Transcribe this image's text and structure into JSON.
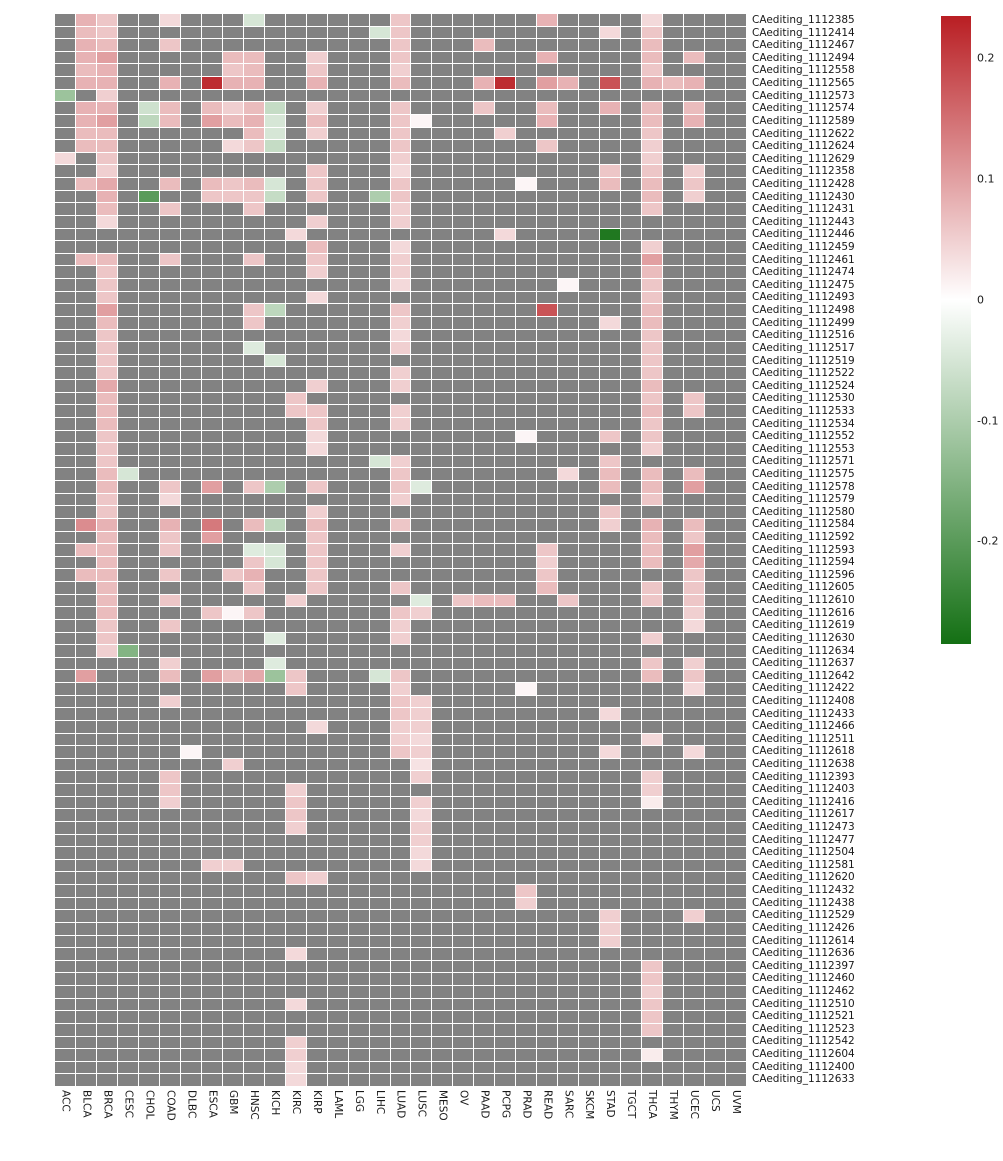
{
  "chart_data": {
    "type": "heatmap",
    "title": "",
    "na_color": "#828282",
    "legend": {
      "top_value": 0.235,
      "bottom_value": -0.285,
      "ticks": [
        {
          "label": "0.2",
          "value": 0.2
        },
        {
          "label": "0.1",
          "value": 0.1
        },
        {
          "label": "0",
          "value": 0
        },
        {
          "label": "-0.1",
          "value": -0.1
        },
        {
          "label": "-0.2",
          "value": -0.2
        }
      ],
      "colors": {
        "positive": "#b91e23",
        "zero": "#ffffff",
        "negative": "#147014",
        "na": "#828282"
      }
    },
    "columns": [
      "ACC",
      "BLCA",
      "BRCA",
      "CESC",
      "CHOL",
      "COAD",
      "DLBC",
      "ESCA",
      "GBM",
      "HNSC",
      "KICH",
      "KIRC",
      "KIRP",
      "LAML",
      "LGG",
      "LIHC",
      "LUAD",
      "LUSC",
      "MESO",
      "OV",
      "PAAD",
      "PCPG",
      "PRAD",
      "READ",
      "SARC",
      "SKCM",
      "STAD",
      "TGCT",
      "THCA",
      "THYM",
      "UCEC",
      "UCS",
      "UVM"
    ],
    "rows": [
      {
        "label": "CAediting_1112385",
        "cells": {
          "BLCA": 0.08,
          "BRCA": 0.06,
          "COAD": 0.04,
          "HNSC": -0.05,
          "LUAD": 0.06,
          "READ": 0.08,
          "THCA": 0.04
        }
      },
      {
        "label": "CAediting_1112414",
        "cells": {
          "BLCA": 0.07,
          "BRCA": 0.06,
          "LIHC": -0.05,
          "LUAD": 0.06,
          "STAD": 0.04,
          "THCA": 0.06
        }
      },
      {
        "label": "CAediting_1112467",
        "cells": {
          "BLCA": 0.08,
          "BRCA": 0.07,
          "COAD": 0.06,
          "LUAD": 0.06,
          "PAAD": 0.07,
          "THCA": 0.07
        }
      },
      {
        "label": "CAediting_1112494",
        "cells": {
          "BLCA": 0.08,
          "BRCA": 0.1,
          "GBM": 0.07,
          "HNSC": 0.07,
          "KIRP": 0.05,
          "LUAD": 0.06,
          "READ": 0.08,
          "THCA": 0.07,
          "UCEC": 0.07
        }
      },
      {
        "label": "CAediting_1112558",
        "cells": {
          "BLCA": 0.07,
          "BRCA": 0.08,
          "GBM": 0.06,
          "HNSC": 0.07,
          "KIRP": 0.06,
          "LUAD": 0.05,
          "THCA": 0.06
        }
      },
      {
        "label": "CAediting_1112565",
        "cells": {
          "BLCA": 0.08,
          "BRCA": 0.08,
          "COAD": 0.08,
          "ESCA": 0.22,
          "GBM": 0.08,
          "HNSC": 0.08,
          "KIRP": 0.08,
          "LUAD": 0.07,
          "PAAD": 0.08,
          "PCPG": 0.22,
          "READ": 0.1,
          "SARC": 0.08,
          "STAD": 0.18,
          "THCA": 0.08,
          "THYM": 0.07,
          "UCEC": 0.08
        }
      },
      {
        "label": "CAediting_1112573",
        "cells": {
          "ACC": -0.12,
          "BRCA": 0.05
        }
      },
      {
        "label": "CAediting_1112574",
        "cells": {
          "BLCA": 0.08,
          "BRCA": 0.08,
          "CHOL": -0.06,
          "COAD": 0.07,
          "ESCA": 0.07,
          "GBM": 0.05,
          "HNSC": 0.07,
          "KICH": -0.07,
          "KIRP": 0.05,
          "LUAD": 0.06,
          "PAAD": 0.06,
          "READ": 0.07,
          "STAD": 0.08,
          "THCA": 0.07,
          "UCEC": 0.07
        }
      },
      {
        "label": "CAediting_1112589",
        "cells": {
          "BLCA": 0.08,
          "BRCA": 0.1,
          "CHOL": -0.08,
          "COAD": 0.07,
          "ESCA": 0.1,
          "GBM": 0.07,
          "HNSC": 0.08,
          "KICH": -0.05,
          "KIRP": 0.07,
          "LUAD": 0.06,
          "LUSC": 0.01,
          "READ": 0.08,
          "THCA": 0.07,
          "UCEC": 0.08
        }
      },
      {
        "label": "CAediting_1112622",
        "cells": {
          "BLCA": 0.07,
          "BRCA": 0.07,
          "HNSC": 0.07,
          "KICH": -0.05,
          "KIRP": 0.05,
          "LUAD": 0.06,
          "PCPG": 0.05,
          "THCA": 0.06
        }
      },
      {
        "label": "CAediting_1112624",
        "cells": {
          "BLCA": 0.07,
          "BRCA": 0.07,
          "GBM": 0.04,
          "HNSC": 0.06,
          "KICH": -0.07,
          "LUAD": 0.06,
          "READ": 0.06,
          "THCA": 0.05
        }
      },
      {
        "label": "CAediting_1112629",
        "cells": {
          "ACC": 0.04,
          "BRCA": 0.06,
          "LUAD": 0.05,
          "THCA": 0.05
        }
      },
      {
        "label": "CAediting_1112358",
        "cells": {
          "BRCA": 0.05,
          "KIRP": 0.06,
          "LUAD": 0.04,
          "STAD": 0.06,
          "THCA": 0.06,
          "UCEC": 0.05
        }
      },
      {
        "label": "CAediting_1112428",
        "cells": {
          "BLCA": 0.07,
          "BRCA": 0.09,
          "COAD": 0.07,
          "ESCA": 0.07,
          "GBM": 0.06,
          "HNSC": 0.07,
          "KICH": -0.05,
          "KIRP": 0.06,
          "LUAD": 0.06,
          "PRAD": 0.01,
          "STAD": 0.07,
          "THCA": 0.07,
          "UCEC": 0.06
        }
      },
      {
        "label": "CAediting_1112430",
        "cells": {
          "BRCA": 0.08,
          "CHOL": -0.2,
          "ESCA": 0.06,
          "GBM": 0.06,
          "HNSC": 0.06,
          "KICH": -0.07,
          "KIRP": 0.06,
          "LIHC": -0.1,
          "LUAD": 0.06,
          "THCA": 0.07,
          "UCEC": 0.05
        }
      },
      {
        "label": "CAediting_1112431",
        "cells": {
          "BRCA": 0.07,
          "COAD": 0.06,
          "HNSC": 0.06,
          "LUAD": 0.05,
          "THCA": 0.06
        }
      },
      {
        "label": "CAediting_1112443",
        "cells": {
          "BRCA": 0.04,
          "KIRP": 0.05,
          "LUAD": 0.05
        }
      },
      {
        "label": "CAediting_1112446",
        "cells": {
          "KIRC": 0.04,
          "PCPG": 0.04,
          "STAD": -0.27
        }
      },
      {
        "label": "CAediting_1112459",
        "cells": {
          "KIRP": 0.07,
          "LUAD": 0.04,
          "THCA": 0.05
        }
      },
      {
        "label": "CAediting_1112461",
        "cells": {
          "BLCA": 0.07,
          "BRCA": 0.07,
          "COAD": 0.06,
          "HNSC": 0.06,
          "KIRP": 0.06,
          "LUAD": 0.05,
          "THCA": 0.1
        }
      },
      {
        "label": "CAediting_1112474",
        "cells": {
          "BRCA": 0.06,
          "KIRP": 0.05,
          "LUAD": 0.05,
          "THCA": 0.07
        }
      },
      {
        "label": "CAediting_1112475",
        "cells": {
          "BRCA": 0.06,
          "LUAD": 0.04,
          "SARC": 0.01,
          "THCA": 0.06
        }
      },
      {
        "label": "CAediting_1112493",
        "cells": {
          "BRCA": 0.06,
          "KIRP": 0.04,
          "THCA": 0.06
        }
      },
      {
        "label": "CAediting_1112498",
        "cells": {
          "BRCA": 0.1,
          "HNSC": 0.06,
          "KICH": -0.08,
          "LUAD": 0.06,
          "READ": 0.18,
          "THCA": 0.07
        }
      },
      {
        "label": "CAediting_1112499",
        "cells": {
          "BRCA": 0.07,
          "HNSC": 0.06,
          "LUAD": 0.05,
          "STAD": 0.04,
          "THCA": 0.07
        }
      },
      {
        "label": "CAediting_1112516",
        "cells": {
          "BRCA": 0.06,
          "LUAD": 0.04,
          "THCA": 0.06
        }
      },
      {
        "label": "CAediting_1112517",
        "cells": {
          "BRCA": 0.06,
          "HNSC": -0.04,
          "LUAD": 0.05,
          "THCA": 0.06
        }
      },
      {
        "label": "CAediting_1112519",
        "cells": {
          "BRCA": 0.06,
          "KICH": -0.05,
          "THCA": 0.06
        }
      },
      {
        "label": "CAediting_1112522",
        "cells": {
          "BRCA": 0.06,
          "LUAD": 0.05,
          "THCA": 0.06
        }
      },
      {
        "label": "CAediting_1112524",
        "cells": {
          "BRCA": 0.09,
          "KIRP": 0.05,
          "LUAD": 0.05,
          "THCA": 0.07
        }
      },
      {
        "label": "CAediting_1112530",
        "cells": {
          "BRCA": 0.07,
          "KIRC": 0.06,
          "THCA": 0.06,
          "UCEC": 0.06
        }
      },
      {
        "label": "CAediting_1112533",
        "cells": {
          "BRCA": 0.07,
          "KIRC": 0.06,
          "KIRP": 0.06,
          "LUAD": 0.05,
          "THCA": 0.07,
          "UCEC": 0.06
        }
      },
      {
        "label": "CAediting_1112534",
        "cells": {
          "BRCA": 0.07,
          "KIRP": 0.06,
          "LUAD": 0.05,
          "THCA": 0.06
        }
      },
      {
        "label": "CAediting_1112552",
        "cells": {
          "BRCA": 0.06,
          "KIRP": 0.04,
          "PRAD": 0.01,
          "STAD": 0.06,
          "THCA": 0.06
        }
      },
      {
        "label": "CAediting_1112553",
        "cells": {
          "BRCA": 0.06,
          "KIRP": 0.04,
          "THCA": 0.05
        }
      },
      {
        "label": "CAediting_1112571",
        "cells": {
          "BRCA": 0.06,
          "LIHC": -0.05,
          "LUAD": 0.05,
          "STAD": 0.06
        }
      },
      {
        "label": "CAediting_1112575",
        "cells": {
          "BRCA": 0.07,
          "CESC": -0.05,
          "LUAD": 0.06,
          "SARC": 0.04,
          "STAD": 0.07,
          "THCA": 0.07,
          "UCEC": 0.07
        }
      },
      {
        "label": "CAediting_1112578",
        "cells": {
          "BRCA": 0.07,
          "COAD": 0.06,
          "ESCA": 0.1,
          "HNSC": 0.06,
          "KICH": -0.1,
          "KIRP": 0.06,
          "LUAD": 0.06,
          "LUSC": -0.04,
          "STAD": 0.07,
          "THCA": 0.07,
          "UCEC": 0.1
        }
      },
      {
        "label": "CAediting_1112579",
        "cells": {
          "BRCA": 0.06,
          "COAD": 0.04,
          "LUAD": 0.05,
          "THCA": 0.06
        }
      },
      {
        "label": "CAediting_1112580",
        "cells": {
          "BRCA": 0.06,
          "KIRP": 0.05,
          "STAD": 0.06
        }
      },
      {
        "label": "CAediting_1112584",
        "cells": {
          "BLCA": 0.12,
          "BRCA": 0.08,
          "COAD": 0.08,
          "ESCA": 0.14,
          "HNSC": 0.07,
          "KICH": -0.08,
          "KIRP": 0.07,
          "LUAD": 0.06,
          "STAD": 0.05,
          "THCA": 0.08,
          "UCEC": 0.07
        }
      },
      {
        "label": "CAediting_1112592",
        "cells": {
          "BRCA": 0.07,
          "COAD": 0.06,
          "ESCA": 0.1,
          "KIRP": 0.06,
          "THCA": 0.07,
          "UCEC": 0.06
        }
      },
      {
        "label": "CAediting_1112593",
        "cells": {
          "BLCA": 0.07,
          "BRCA": 0.07,
          "COAD": 0.06,
          "HNSC": -0.04,
          "KICH": -0.05,
          "KIRP": 0.06,
          "LUAD": 0.05,
          "READ": 0.06,
          "THCA": 0.07,
          "UCEC": 0.1
        }
      },
      {
        "label": "CAediting_1112594",
        "cells": {
          "BRCA": 0.07,
          "HNSC": 0.06,
          "KICH": -0.05,
          "KIRP": 0.06,
          "READ": 0.05,
          "THCA": 0.07,
          "UCEC": 0.09
        }
      },
      {
        "label": "CAediting_1112596",
        "cells": {
          "BLCA": 0.07,
          "BRCA": 0.07,
          "COAD": 0.06,
          "GBM": 0.06,
          "HNSC": 0.08,
          "KIRP": 0.06,
          "READ": 0.06,
          "UCEC": 0.06
        }
      },
      {
        "label": "CAediting_1112605",
        "cells": {
          "BRCA": 0.07,
          "HNSC": 0.06,
          "KIRP": 0.06,
          "LUAD": 0.06,
          "READ": 0.07,
          "THCA": 0.06,
          "UCEC": 0.06
        }
      },
      {
        "label": "CAediting_1112610",
        "cells": {
          "BRCA": 0.07,
          "COAD": 0.06,
          "KIRC": 0.05,
          "LUSC": -0.04,
          "OV": 0.06,
          "PAAD": 0.07,
          "PCPG": 0.07,
          "SARC": 0.06,
          "THCA": 0.06,
          "UCEC": 0.06
        }
      },
      {
        "label": "CAediting_1112616",
        "cells": {
          "BRCA": 0.07,
          "ESCA": 0.06,
          "GBM": 0.01,
          "HNSC": 0.06,
          "LUAD": 0.06,
          "LUSC": 0.05,
          "UCEC": 0.05
        }
      },
      {
        "label": "CAediting_1112619",
        "cells": {
          "BRCA": 0.06,
          "COAD": 0.06,
          "LUAD": 0.05,
          "UCEC": 0.04
        }
      },
      {
        "label": "CAediting_1112630",
        "cells": {
          "BRCA": 0.06,
          "KICH": -0.04,
          "LUAD": 0.05,
          "THCA": 0.05
        }
      },
      {
        "label": "CAediting_1112634",
        "cells": {
          "BRCA": 0.05,
          "CESC": -0.15
        }
      },
      {
        "label": "CAediting_1112637",
        "cells": {
          "COAD": 0.05,
          "KICH": -0.04,
          "THCA": 0.06,
          "UCEC": 0.05
        }
      },
      {
        "label": "CAediting_1112642",
        "cells": {
          "BLCA": 0.1,
          "COAD": 0.07,
          "ESCA": 0.1,
          "GBM": 0.07,
          "HNSC": 0.09,
          "KICH": -0.12,
          "KIRC": 0.06,
          "LIHC": -0.05,
          "LUAD": 0.06,
          "THCA": 0.07,
          "UCEC": 0.06
        }
      },
      {
        "label": "CAediting_1112422",
        "cells": {
          "KIRC": 0.06,
          "LUAD": 0.05,
          "PRAD": 0.01,
          "UCEC": 0.04
        }
      },
      {
        "label": "CAediting_1112408",
        "cells": {
          "COAD": 0.05,
          "LUAD": 0.06,
          "LUSC": 0.05
        }
      },
      {
        "label": "CAediting_1112433",
        "cells": {
          "LUAD": 0.06,
          "LUSC": 0.05,
          "STAD": 0.04
        }
      },
      {
        "label": "CAediting_1112466",
        "cells": {
          "KIRP": 0.04,
          "LUAD": 0.05,
          "LUSC": 0.05
        }
      },
      {
        "label": "CAediting_1112511",
        "cells": {
          "LUAD": 0.05,
          "LUSC": 0.04,
          "THCA": 0.04
        }
      },
      {
        "label": "CAediting_1112618",
        "cells": {
          "DLBC": 0.01,
          "LUAD": 0.06,
          "LUSC": 0.05,
          "STAD": 0.04,
          "UCEC": 0.04
        }
      },
      {
        "label": "CAediting_1112638",
        "cells": {
          "GBM": 0.05,
          "LUSC": 0.03
        }
      },
      {
        "label": "CAediting_1112393",
        "cells": {
          "COAD": 0.06,
          "LUSC": 0.05,
          "THCA": 0.05
        }
      },
      {
        "label": "CAediting_1112403",
        "cells": {
          "COAD": 0.06,
          "KIRC": 0.05,
          "THCA": 0.05
        }
      },
      {
        "label": "CAediting_1112416",
        "cells": {
          "COAD": 0.05,
          "KIRC": 0.06,
          "LUSC": 0.05,
          "THCA": 0.02
        }
      },
      {
        "label": "CAediting_1112617",
        "cells": {
          "KIRC": 0.06,
          "LUSC": 0.04
        }
      },
      {
        "label": "CAediting_1112473",
        "cells": {
          "KIRC": 0.05,
          "LUSC": 0.05
        }
      },
      {
        "label": "CAediting_1112477",
        "cells": {
          "LUSC": 0.05
        }
      },
      {
        "label": "CAediting_1112504",
        "cells": {
          "LUSC": 0.04
        }
      },
      {
        "label": "CAediting_1112581",
        "cells": {
          "ESCA": 0.05,
          "GBM": 0.05,
          "LUSC": 0.04
        }
      },
      {
        "label": "CAediting_1112620",
        "cells": {
          "KIRC": 0.06,
          "KIRP": 0.05
        }
      },
      {
        "label": "CAediting_1112432",
        "cells": {
          "PRAD": 0.06
        }
      },
      {
        "label": "CAediting_1112438",
        "cells": {
          "PRAD": 0.05
        }
      },
      {
        "label": "CAediting_1112529",
        "cells": {
          "STAD": 0.05,
          "UCEC": 0.05
        }
      },
      {
        "label": "CAediting_1112426",
        "cells": {
          "STAD": 0.05
        }
      },
      {
        "label": "CAediting_1112614",
        "cells": {
          "STAD": 0.05
        }
      },
      {
        "label": "CAediting_1112636",
        "cells": {
          "KIRC": 0.04
        }
      },
      {
        "label": "CAediting_1112397",
        "cells": {
          "THCA": 0.06
        }
      },
      {
        "label": "CAediting_1112460",
        "cells": {
          "THCA": 0.06
        }
      },
      {
        "label": "CAediting_1112462",
        "cells": {
          "THCA": 0.05
        }
      },
      {
        "label": "CAediting_1112510",
        "cells": {
          "KIRC": 0.04,
          "THCA": 0.06
        }
      },
      {
        "label": "CAediting_1112521",
        "cells": {
          "THCA": 0.06
        }
      },
      {
        "label": "CAediting_1112523",
        "cells": {
          "THCA": 0.06
        }
      },
      {
        "label": "CAediting_1112542",
        "cells": {
          "KIRC": 0.05
        }
      },
      {
        "label": "CAediting_1112604",
        "cells": {
          "KIRC": 0.05,
          "THCA": 0.02
        }
      },
      {
        "label": "CAediting_1112400",
        "cells": {
          "KIRC": 0.04
        }
      },
      {
        "label": "CAediting_1112633",
        "cells": {
          "KIRC": 0.04
        }
      }
    ]
  }
}
